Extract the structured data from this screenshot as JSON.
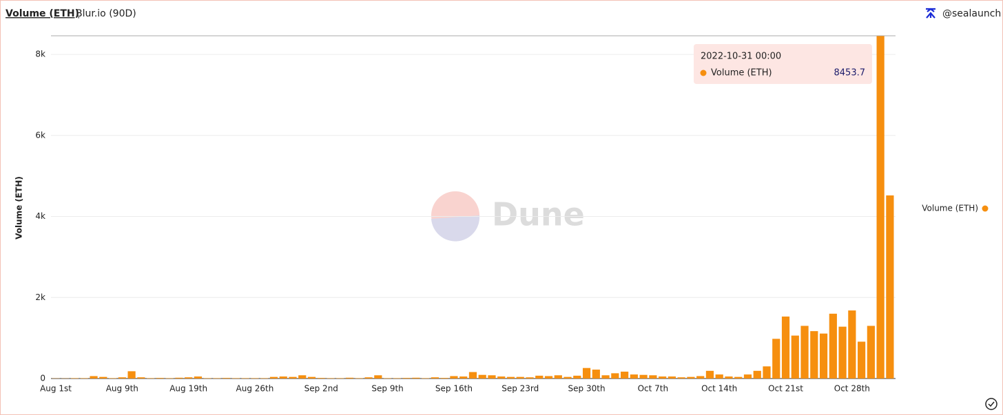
{
  "header": {
    "title": "Volume (ETH)",
    "subtitle": "Blur.io (90D)",
    "author": "@sealaunch"
  },
  "watermark": "Dune",
  "chart_data": {
    "type": "bar",
    "y_label": "Volume (ETH)",
    "categories": [
      "Aug 1st",
      null,
      null,
      null,
      null,
      null,
      null,
      "Aug 9th",
      null,
      null,
      null,
      null,
      null,
      null,
      "Aug 19th",
      null,
      null,
      null,
      null,
      null,
      null,
      "Aug 26th",
      null,
      null,
      null,
      null,
      null,
      null,
      "Sep 2nd",
      null,
      null,
      null,
      null,
      null,
      null,
      "Sep 9th",
      null,
      null,
      null,
      null,
      null,
      null,
      "Sep 16th",
      null,
      null,
      null,
      null,
      null,
      null,
      "Sep 23rd",
      null,
      null,
      null,
      null,
      null,
      null,
      "Sep 30th",
      null,
      null,
      null,
      null,
      null,
      null,
      "Oct 7th",
      null,
      null,
      null,
      null,
      null,
      null,
      "Oct 14th",
      null,
      null,
      null,
      null,
      null,
      null,
      "Oct 21st",
      null,
      null,
      null,
      null,
      null,
      null,
      "Oct 28th",
      null,
      null,
      null,
      null
    ],
    "series": [
      {
        "name": "Volume (ETH)",
        "color": "#f68f0f",
        "values": [
          5,
          5,
          10,
          10,
          60,
          40,
          10,
          30,
          180,
          30,
          10,
          15,
          10,
          20,
          30,
          50,
          10,
          10,
          15,
          10,
          10,
          10,
          10,
          40,
          50,
          40,
          80,
          40,
          15,
          10,
          10,
          20,
          10,
          30,
          80,
          10,
          10,
          15,
          20,
          10,
          30,
          15,
          60,
          50,
          160,
          90,
          80,
          50,
          40,
          40,
          30,
          70,
          60,
          80,
          40,
          70,
          260,
          220,
          80,
          130,
          170,
          100,
          90,
          80,
          50,
          50,
          30,
          40,
          60,
          190,
          100,
          50,
          40,
          100,
          190,
          300,
          980,
          1530,
          1060,
          1300,
          1170,
          1110,
          1600,
          1280,
          1680,
          910,
          1300,
          8453.7,
          4520
        ]
      }
    ],
    "ylim": [
      0,
      8460
    ],
    "yticks": [
      0,
      {
        "value": 2000,
        "label": "2k"
      },
      {
        "value": 4000,
        "label": "4k"
      },
      {
        "value": 6000,
        "label": "6k"
      },
      {
        "value": 8000,
        "label": "8k"
      }
    ],
    "grid": true,
    "legend": "right",
    "tooltip": {
      "label": "2022-10-31 00:00"
    }
  }
}
